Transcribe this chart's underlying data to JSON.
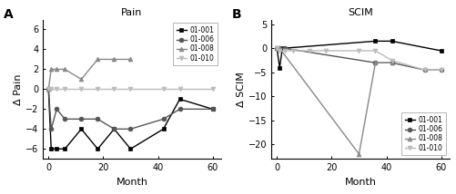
{
  "panel_A_title": "Pain",
  "panel_B_title": "SCIM",
  "panel_A_ylabel": "Δ Pain",
  "panel_B_ylabel": "Δ SCIM",
  "xlabel": "Month",
  "panel_label_A": "A",
  "panel_label_B": "B",
  "pain_001_x": [
    0,
    1,
    3,
    6,
    12,
    18,
    24,
    30,
    42,
    48,
    60
  ],
  "pain_001_y": [
    0,
    -6,
    -6,
    -6,
    -4,
    -6,
    -4,
    -6,
    -4,
    -1,
    -2
  ],
  "pain_006_x": [
    0,
    1,
    3,
    6,
    12,
    18,
    24,
    30,
    42,
    48,
    60
  ],
  "pain_006_y": [
    0,
    -4,
    -2,
    -3,
    -3,
    -3,
    -4,
    -4,
    -3,
    -2,
    -2
  ],
  "pain_008_x": [
    0,
    1,
    3,
    6,
    12,
    18,
    24,
    30
  ],
  "pain_008_y": [
    0,
    2,
    2,
    2,
    1,
    3,
    3,
    3
  ],
  "pain_010_x": [
    0,
    1,
    3,
    6,
    12,
    18,
    24,
    30,
    42,
    48,
    60
  ],
  "pain_010_y": [
    0,
    0,
    0,
    0,
    0,
    0,
    0,
    0,
    0,
    0,
    0
  ],
  "scim_001_x": [
    0,
    1,
    2,
    36,
    42,
    60
  ],
  "scim_001_y": [
    0,
    -4,
    0,
    1.5,
    1.5,
    -0.5
  ],
  "scim_006_x": [
    0,
    1,
    3,
    36,
    42,
    54,
    60
  ],
  "scim_006_y": [
    0,
    0,
    0,
    -3,
    -3,
    -4.5,
    -4.5
  ],
  "scim_008_x": [
    0,
    1,
    30,
    36,
    42
  ],
  "scim_008_y": [
    0,
    0,
    -22,
    -3,
    -3
  ],
  "scim_010_x": [
    0,
    1,
    3,
    6,
    12,
    18,
    30,
    36,
    42,
    54,
    60
  ],
  "scim_010_y": [
    0,
    -0.5,
    -0.5,
    -0.5,
    -0.5,
    -0.5,
    -0.5,
    -0.5,
    -2.5,
    -4.5,
    -4.5
  ],
  "pain_xlim": [
    -2,
    63
  ],
  "pain_ylim": [
    -7,
    7
  ],
  "pain_yticks": [
    -6,
    -4,
    -2,
    0,
    2,
    4,
    6
  ],
  "pain_xticks": [
    0,
    20,
    40,
    60
  ],
  "scim_xlim": [
    -2,
    63
  ],
  "scim_ylim": [
    -23,
    6
  ],
  "scim_yticks": [
    -20,
    -15,
    -10,
    -5,
    0,
    5
  ],
  "scim_xticks": [
    0,
    20,
    40,
    60
  ],
  "color_001": "#000000",
  "color_006": "#555555",
  "color_008": "#888888",
  "color_010": "#bbbbbb",
  "marker_001": "s",
  "marker_006": "o",
  "marker_008": "^",
  "marker_010": "v",
  "legend_labels": [
    "01-001",
    "01-006",
    "01-008",
    "01-010"
  ],
  "linewidth": 1.0,
  "markersize": 3.5,
  "background_color": "#ffffff"
}
